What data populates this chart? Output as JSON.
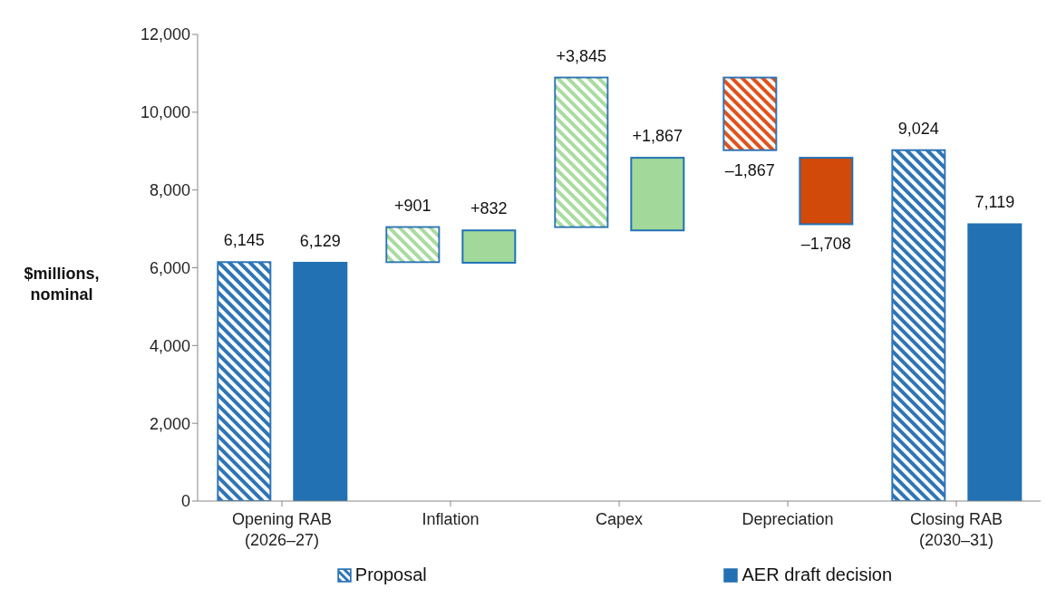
{
  "chart_data": {
    "type": "bar",
    "ylabel": "$millions, nominal",
    "categories": [
      "Opening RAB (2026–27)",
      "Inflation",
      "Capex",
      "Depreciation",
      "Closing RAB (2030–31)"
    ],
    "series": [
      {
        "name": "Proposal",
        "color": "#2e75b6",
        "colors": [
          "#2e75b6",
          "#a9dc9f",
          "#a9dc9f",
          "#e0521b",
          "#2e75b6"
        ],
        "values": [
          6145,
          901,
          3845,
          -1867,
          9024
        ],
        "base": [
          0,
          6145,
          7046,
          10891,
          0
        ],
        "value_labels": [
          "6,145",
          "+901",
          "+3,845",
          "–1,867",
          "9,024"
        ]
      },
      {
        "name": "AER draft decision",
        "color": "#2271b3",
        "colors": [
          "#2271b3",
          "#a2d99a",
          "#a2d99a",
          "#d24a0a",
          "#2271b3"
        ],
        "values": [
          6129,
          832,
          1867,
          -1708,
          7119
        ],
        "base": [
          0,
          6129,
          6961,
          8828,
          0
        ],
        "value_labels": [
          "6,129",
          "+832",
          "+1,867",
          "–1,708",
          "7,119"
        ]
      }
    ],
    "ylim": [
      0,
      12000
    ],
    "yticks": [
      {
        "value": 0,
        "label": "0"
      },
      {
        "value": 2000,
        "label": "2,000"
      },
      {
        "value": 4000,
        "label": "4,000"
      },
      {
        "value": 6000,
        "label": "6,000"
      },
      {
        "value": 8000,
        "label": "8,000"
      },
      {
        "value": 10000,
        "label": "10,000"
      },
      {
        "value": 12000,
        "label": "12,000"
      }
    ],
    "grid": false,
    "legend": "bottom"
  }
}
